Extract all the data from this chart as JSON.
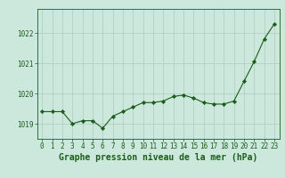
{
  "x": [
    0,
    1,
    2,
    3,
    4,
    5,
    6,
    7,
    8,
    9,
    10,
    11,
    12,
    13,
    14,
    15,
    16,
    17,
    18,
    19,
    20,
    21,
    22,
    23
  ],
  "y": [
    1019.4,
    1019.4,
    1019.4,
    1019.0,
    1019.1,
    1019.1,
    1018.85,
    1019.25,
    1019.4,
    1019.55,
    1019.7,
    1019.7,
    1019.75,
    1019.9,
    1019.95,
    1019.85,
    1019.7,
    1019.65,
    1019.65,
    1019.75,
    1020.4,
    1021.05,
    1021.8,
    1022.3
  ],
  "line_color": "#1a5c1a",
  "marker": "D",
  "marker_size": 2.2,
  "marker_color": "#1a5c1a",
  "bg_color": "#cce8dc",
  "grid_color": "#aaccbc",
  "xlabel": "Graphe pression niveau de la mer (hPa)",
  "xlabel_color": "#1a5c1a",
  "xlabel_fontsize": 7,
  "tick_color": "#1a5c1a",
  "tick_fontsize": 5.5,
  "yticks": [
    1019,
    1020,
    1021,
    1022
  ],
  "ylim": [
    1018.5,
    1022.8
  ],
  "xlim": [
    -0.5,
    23.5
  ],
  "spine_color": "#1a5c1a"
}
